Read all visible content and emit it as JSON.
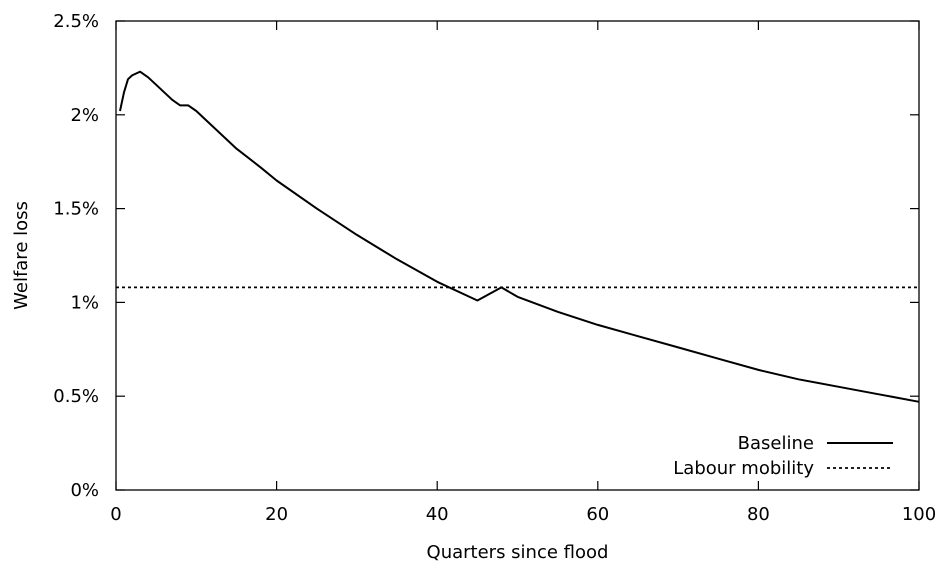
{
  "chart_data": {
    "type": "line",
    "title": "",
    "xlabel": "Quarters since flood",
    "ylabel": "Welfare loss",
    "xlim": [
      0,
      100
    ],
    "ylim": [
      0,
      0.025
    ],
    "xticks": [
      0,
      20,
      40,
      60,
      80,
      100
    ],
    "xtick_labels": [
      "0",
      "20",
      "40",
      "60",
      "80",
      "100"
    ],
    "yticks": [
      0,
      0.005,
      0.01,
      0.015,
      0.02,
      0.025
    ],
    "ytick_labels": [
      "0%",
      "0.5%",
      "1%",
      "1.5%",
      "2%",
      "2.5%"
    ],
    "grid": false,
    "legend_position": "bottom-right",
    "series": [
      {
        "name": "Baseline",
        "style": "solid",
        "color": "#000000",
        "x": [
          0.5,
          1,
          1.5,
          2,
          2.5,
          3,
          4,
          5,
          6,
          7,
          8,
          8.5,
          9,
          10,
          12,
          15,
          18,
          20,
          25,
          30,
          35,
          40,
          45,
          48,
          50,
          55,
          60,
          65,
          70,
          75,
          80,
          85,
          90,
          95,
          100
        ],
        "y": [
          0.0202,
          0.0212,
          0.0219,
          0.0221,
          0.0222,
          0.0223,
          0.022,
          0.0216,
          0.0212,
          0.0208,
          0.0205,
          0.0205,
          0.0205,
          0.0202,
          0.0194,
          0.0182,
          0.0172,
          0.0165,
          0.015,
          0.0136,
          0.0123,
          0.0111,
          0.0101,
          0.0108,
          0.0103,
          0.0095,
          0.0088,
          0.0082,
          0.0076,
          0.007,
          0.0064,
          0.0059,
          0.0055,
          0.0051,
          0.0047
        ]
      },
      {
        "name": "Labour mobility",
        "style": "dotted",
        "color": "#000000",
        "x": [
          0,
          100
        ],
        "y": [
          0.0108,
          0.0108
        ]
      }
    ]
  }
}
